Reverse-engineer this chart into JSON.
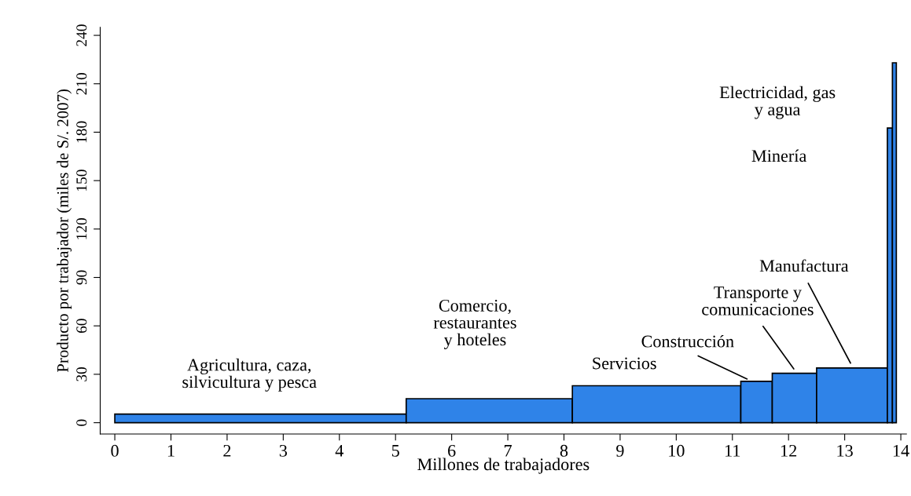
{
  "chart_data": {
    "type": "histogram",
    "xlabel": "Millones de trabajadores",
    "ylabel": "Producto por trabajador (miles de S/. 2007)",
    "bins": [
      0,
      5.19,
      8.15,
      11.15,
      11.71,
      12.5,
      13.76,
      13.85,
      13.92
    ],
    "values": [
      5.3,
      14.9,
      22.9,
      25.6,
      30.6,
      33.9,
      182.6,
      223
    ],
    "color": "#2f83e8",
    "xlim": [
      -0.26,
      14.1
    ],
    "ylim": [
      -7,
      245
    ],
    "xticks": [
      0,
      1,
      2,
      3,
      4,
      5,
      6,
      7,
      8,
      9,
      10,
      11,
      12,
      13,
      14
    ],
    "yticks": [
      0,
      30,
      60,
      90,
      120,
      150,
      180,
      210,
      240
    ],
    "grid": false,
    "legend": false,
    "annotations": [
      "Agricultura, caza,\nsilvicultura y pesca",
      "Comercio,\nrestaurantes\ny hoteles",
      "Servicios",
      {
        "text": "Construcción",
        "x": 11.35,
        "y": 25.6
      },
      {
        "text": "Transporte y\ncomunicaciones",
        "x": 12.15,
        "y": 30.6
      },
      {
        "text": "Manufactura",
        "x": 13.15,
        "y": 33.9
      },
      "Minería",
      "Electricidad, gas\ny agua"
    ]
  }
}
